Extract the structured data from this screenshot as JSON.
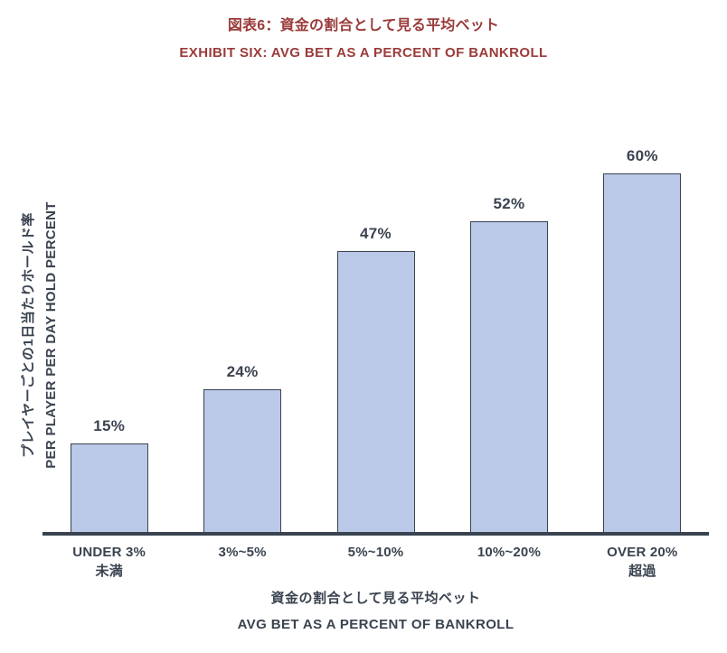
{
  "header": {
    "title_ja": "図表6：資金の割合として見る平均ベット",
    "title_en": "EXHIBIT SIX: AVG BET AS A PERCENT OF BANKROLL"
  },
  "chart_data": {
    "type": "bar",
    "title_ja": "図表6：資金の割合として見る平均ベット",
    "title_en": "EXHIBIT SIX: AVG BET AS A PERCENT OF BANKROLL",
    "categories": [
      {
        "line1": "UNDER 3%",
        "line2": "未満"
      },
      {
        "line1": "3%~5%",
        "line2": ""
      },
      {
        "line1": "5%~10%",
        "line2": ""
      },
      {
        "line1": "10%~20%",
        "line2": ""
      },
      {
        "line1": "OVER 20%",
        "line2": "超過"
      }
    ],
    "values": [
      15,
      24,
      47,
      52,
      60
    ],
    "value_labels": [
      "15%",
      "24%",
      "47%",
      "52%",
      "60%"
    ],
    "xlabel_ja": "資金の割合として見る平均ベット",
    "xlabel_en": "AVG BET AS A PERCENT OF BANKROLL",
    "ylabel_ja": "プレイヤーごとの1日当たりホールド率",
    "ylabel_en": "PER PLAYER PER DAY HOLD PERCENT",
    "ylim": [
      0,
      66
    ],
    "grid": false,
    "legend": "none",
    "colors": {
      "bar_fill": "#b9c9e7",
      "bar_border": "#3a4350",
      "axis_line": "#3a4350",
      "text": "#3a4350",
      "title": "#9a3b39"
    }
  }
}
